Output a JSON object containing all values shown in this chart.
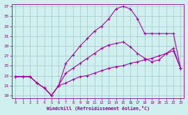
{
  "bg_color": "#cff0ee",
  "line_color": "#aa00aa",
  "grid_color": "#aacccc",
  "xlabel": "Windchill (Refroidissement éolien,°C)",
  "xlabel_color": "#880088",
  "tick_color": "#880088",
  "xlim": [
    -0.5,
    23.5
  ],
  "ylim": [
    18.5,
    37.5
  ],
  "yticks": [
    19,
    21,
    23,
    25,
    27,
    29,
    31,
    33,
    35,
    37
  ],
  "xticks": [
    0,
    1,
    2,
    3,
    4,
    5,
    6,
    7,
    8,
    9,
    10,
    11,
    12,
    13,
    14,
    15,
    16,
    17,
    18,
    19,
    20,
    21,
    22,
    23
  ],
  "line_top_x": [
    0,
    1,
    2,
    3,
    4,
    5,
    6,
    7,
    8,
    9,
    10,
    11,
    12,
    13,
    14,
    15,
    16,
    17,
    18,
    19,
    20,
    21,
    22,
    23
  ],
  "line_top_y": [
    22.8,
    22.8,
    22.8,
    21.5,
    20.5,
    19.0,
    21.0,
    25.5,
    27.2,
    29.0,
    30.5,
    32.0,
    33.0,
    34.5,
    36.5,
    37.0,
    36.5,
    34.5,
    31.5,
    31.5,
    31.5,
    31.5,
    31.5,
    24.5
  ],
  "line_mid_x": [
    0,
    1,
    2,
    3,
    4,
    5,
    6,
    7,
    8,
    9,
    10,
    11,
    12,
    13,
    14,
    15,
    16,
    17,
    18,
    19,
    20,
    21,
    22,
    23
  ],
  "line_mid_y": [
    22.8,
    22.8,
    22.8,
    21.5,
    20.5,
    19.0,
    21.0,
    23.5,
    24.5,
    25.5,
    26.5,
    27.5,
    28.5,
    29.2,
    29.5,
    29.8,
    28.8,
    27.5,
    26.5,
    25.8,
    26.2,
    27.5,
    28.5,
    24.5
  ],
  "line_bot_x": [
    0,
    1,
    2,
    3,
    4,
    5,
    6,
    7,
    8,
    9,
    10,
    11,
    12,
    13,
    14,
    15,
    16,
    17,
    18,
    19,
    20,
    21,
    22,
    23
  ],
  "line_bot_y": [
    22.8,
    22.8,
    22.8,
    21.5,
    20.5,
    19.0,
    21.0,
    21.5,
    22.2,
    22.8,
    23.0,
    23.5,
    24.0,
    24.5,
    24.8,
    25.0,
    25.5,
    25.8,
    26.2,
    26.5,
    27.0,
    27.5,
    28.0,
    24.5
  ],
  "marker": "+"
}
